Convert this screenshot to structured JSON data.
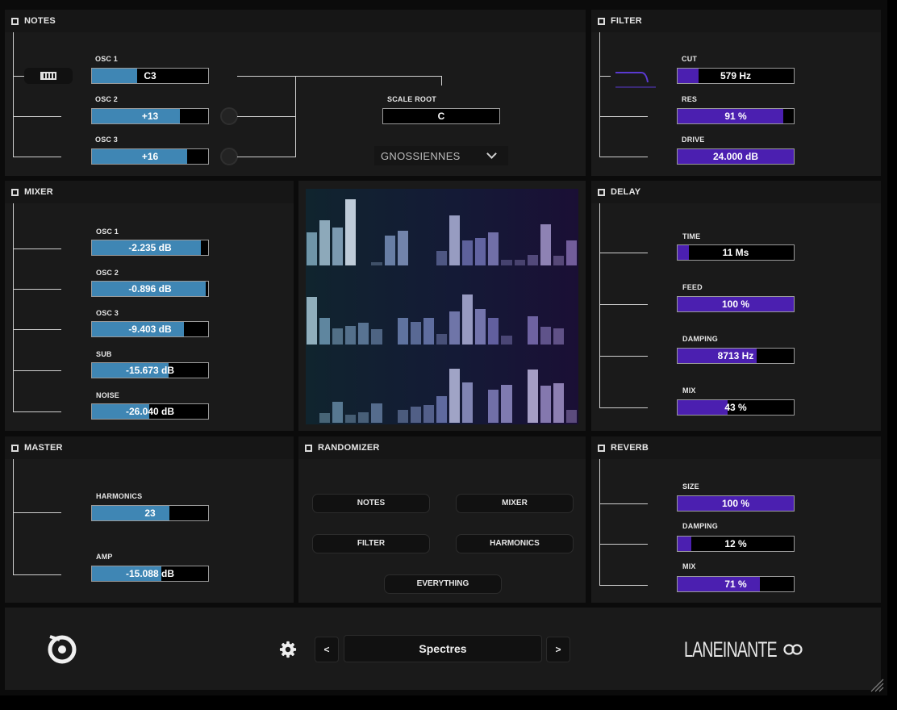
{
  "panels": {
    "notes": {
      "title": "NOTES",
      "osc1_label": "OSC 1",
      "osc1_value": "C3",
      "osc1_level": 0.39,
      "osc2_label": "OSC 2",
      "osc2_value": "+13",
      "osc2_level": 0.76,
      "osc3_label": "OSC 3",
      "osc3_value": "+16",
      "osc3_level": 0.82,
      "scale_root_label": "SCALE ROOT",
      "scale_root_value": "C",
      "scale_select": "GNOSSIENNES"
    },
    "filter": {
      "title": "FILTER",
      "cut_label": "CUT",
      "cut_value": "579 Hz",
      "cut_level": 0.18,
      "res_label": "RES",
      "res_value": "91 %",
      "res_level": 0.91,
      "drive_label": "DRIVE",
      "drive_value": "24.000 dB",
      "drive_level": 1.0
    },
    "mixer": {
      "title": "MIXER",
      "osc1_label": "OSC 1",
      "osc1_value": "-2.235 dB",
      "osc1_level": 0.94,
      "osc2_label": "OSC 2",
      "osc2_value": "-0.896 dB",
      "osc2_level": 0.98,
      "osc3_label": "OSC 3",
      "osc3_value": "-9.403 dB",
      "osc3_level": 0.79,
      "sub_label": "SUB",
      "sub_value": "-15.673 dB",
      "sub_level": 0.66,
      "noise_label": "NOISE",
      "noise_value": "-26.040 dB",
      "noise_level": 0.49
    },
    "delay": {
      "title": "DELAY",
      "time_label": "TIME",
      "time_value": "11 Ms",
      "time_level": 0.1,
      "feed_label": "FEED",
      "feed_value": "100 %",
      "feed_level": 1.0,
      "damping_label": "DAMPING",
      "damping_value": "8713 Hz",
      "damping_level": 0.68,
      "mix_label": "MIX",
      "mix_value": "43 %",
      "mix_level": 0.43
    },
    "master": {
      "title": "MASTER",
      "harmonics_label": "HARMONICS",
      "harmonics_value": "23",
      "harmonics_level": 0.67,
      "amp_label": "AMP",
      "amp_value": "-15.088 dB",
      "amp_level": 0.6
    },
    "randomizer": {
      "title": "RANDOMIZER",
      "notes": "NOTES",
      "mixer": "MIXER",
      "filter": "FILTER",
      "harmonics": "HARMONICS",
      "everything": "EVERYTHING"
    },
    "reverb": {
      "title": "REVERB",
      "size_label": "SIZE",
      "size_value": "100 %",
      "size_level": 1.0,
      "damping_label": "DAMPING",
      "damping_value": "12 %",
      "damping_level": 0.12,
      "mix_label": "MIX",
      "mix_value": "71 %",
      "mix_level": 0.71
    }
  },
  "spectrum": {
    "rows": [
      [
        0.45,
        0.62,
        0.52,
        0.9,
        0,
        0.05,
        0.41,
        0.47,
        0,
        0,
        0.2,
        0.68,
        0.34,
        0.38,
        0.45,
        0.08,
        0.08,
        0.15,
        0.56,
        0.14,
        0.34
      ],
      [
        0.64,
        0.36,
        0.22,
        0.25,
        0.29,
        0.2,
        0,
        0.36,
        0.3,
        0.36,
        0.14,
        0.45,
        0.68,
        0.48,
        0.36,
        0.12,
        0,
        0.38,
        0.24,
        0.22,
        0
      ],
      [
        0,
        0.13,
        0.28,
        0.11,
        0.14,
        0.26,
        0,
        0.17,
        0.22,
        0.24,
        0.36,
        0.73,
        0.55,
        0,
        0.45,
        0.52,
        0,
        0.72,
        0.5,
        0.54,
        0.17
      ]
    ]
  },
  "footer": {
    "preset_name": "Spectres",
    "prev": "<",
    "next": ">",
    "brand": "LANEINANTE"
  },
  "colors": {
    "accent_blue": "#3f86b4",
    "accent_purple": "#4b1fb0"
  }
}
